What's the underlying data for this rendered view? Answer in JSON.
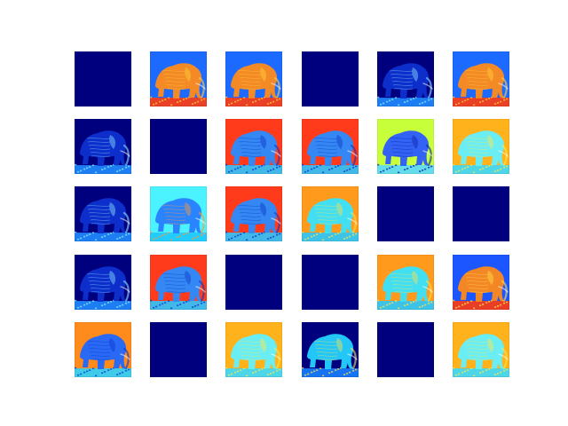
{
  "figure": {
    "rows": 5,
    "cols": 6,
    "background": "#ffffff",
    "colormap": "jet",
    "subject": "elephant-icon",
    "tiles": [
      {
        "kind": "blank",
        "scheme": "blank"
      },
      {
        "kind": "elephant",
        "scheme": "warm"
      },
      {
        "kind": "elephant",
        "scheme": "warm"
      },
      {
        "kind": "blank",
        "scheme": "blank"
      },
      {
        "kind": "elephant",
        "scheme": "darkspeck"
      },
      {
        "kind": "elephant",
        "scheme": "warm"
      },
      {
        "kind": "elephant",
        "scheme": "darkspeck"
      },
      {
        "kind": "blank",
        "scheme": "blank"
      },
      {
        "kind": "elephant",
        "scheme": "redblue"
      },
      {
        "kind": "elephant",
        "scheme": "redblue"
      },
      {
        "kind": "elephant",
        "scheme": "limeblue"
      },
      {
        "kind": "elephant",
        "scheme": "yellowcyan"
      },
      {
        "kind": "elephant",
        "scheme": "darkspeck"
      },
      {
        "kind": "elephant",
        "scheme": "cyanblue"
      },
      {
        "kind": "elephant",
        "scheme": "redblue"
      },
      {
        "kind": "elephant",
        "scheme": "orangecyan"
      },
      {
        "kind": "blank",
        "scheme": "blank"
      },
      {
        "kind": "blank",
        "scheme": "blank"
      },
      {
        "kind": "elephant",
        "scheme": "darkspeck"
      },
      {
        "kind": "elephant",
        "scheme": "redblue"
      },
      {
        "kind": "blank",
        "scheme": "blank"
      },
      {
        "kind": "blank",
        "scheme": "blank"
      },
      {
        "kind": "elephant",
        "scheme": "orangecyan"
      },
      {
        "kind": "elephant",
        "scheme": "bluewarm"
      },
      {
        "kind": "elephant",
        "scheme": "orangeblue"
      },
      {
        "kind": "blank",
        "scheme": "blank"
      },
      {
        "kind": "elephant",
        "scheme": "yellowcyan"
      },
      {
        "kind": "elephant",
        "scheme": "darkcyan"
      },
      {
        "kind": "blank",
        "scheme": "blank"
      },
      {
        "kind": "elephant",
        "scheme": "yellowcyan"
      }
    ],
    "schemes": {
      "blank": {
        "bg": "#00007f",
        "body": "#00007f",
        "ground": "#00007f",
        "accent": "#00007f"
      },
      "warm": {
        "bg": "#1e6bff",
        "body": "#ff8c1a",
        "ground": "#ff3b10",
        "accent": "#ffd23a"
      },
      "darkspeck": {
        "bg": "#00007f",
        "body": "#0a2fd0",
        "ground": "#1f8cff",
        "accent": "#8fe7ff"
      },
      "redblue": {
        "bg": "#ff3a1a",
        "body": "#2a8cff",
        "ground": "#2fc7ff",
        "accent": "#0a36c8"
      },
      "limeblue": {
        "bg": "#c8ff3a",
        "body": "#2a5cff",
        "ground": "#5ad8ff",
        "accent": "#0a1fa6"
      },
      "yellowcyan": {
        "bg": "#ffb21a",
        "body": "#62f0ff",
        "ground": "#3bd8ff",
        "accent": "#ffe84a"
      },
      "cyanblue": {
        "bg": "#4cf2ff",
        "body": "#2a7dff",
        "ground": "#1fc8ff",
        "accent": "#ff9b2a"
      },
      "orangecyan": {
        "bg": "#ff9a1a",
        "body": "#38e3ff",
        "ground": "#29c8ff",
        "accent": "#ffe14a"
      },
      "bluewarm": {
        "bg": "#1e57ff",
        "body": "#ff8a1a",
        "ground": "#ff3c10",
        "accent": "#ffe24a"
      },
      "orangeblue": {
        "bg": "#ff8b1a",
        "body": "#1f67ff",
        "ground": "#2ad1ff",
        "accent": "#0b36d6"
      },
      "darkcyan": {
        "bg": "#00007f",
        "body": "#26d2ff",
        "ground": "#1c7fff",
        "accent": "#ffe24a"
      }
    }
  }
}
